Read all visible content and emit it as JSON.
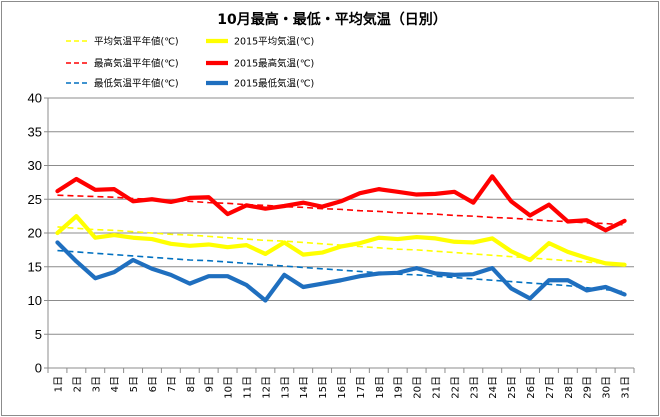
{
  "chart_data": {
    "type": "line",
    "title": "10月最高・最低・平均気温（日別）",
    "ylim": [
      0,
      40
    ],
    "yticks": [
      0,
      5,
      10,
      15,
      20,
      25,
      30,
      35,
      40
    ],
    "grid": true,
    "legend_position": "top-left",
    "categories": [
      "1日",
      "2日",
      "3日",
      "4日",
      "5日",
      "6日",
      "7日",
      "8日",
      "9日",
      "10日",
      "11日",
      "12日",
      "13日",
      "14日",
      "15日",
      "16日",
      "17日",
      "18日",
      "19日",
      "20日",
      "21日",
      "22日",
      "23日",
      "24日",
      "25日",
      "26日",
      "27日",
      "28日",
      "29日",
      "30日",
      "31日"
    ],
    "series": [
      {
        "name": "平均気温平年値(℃)",
        "color": "#ffff00",
        "style": "dashed",
        "values": [
          20.9,
          20.7,
          20.5,
          20.4,
          20.2,
          20.0,
          19.8,
          19.7,
          19.5,
          19.3,
          19.1,
          18.9,
          18.8,
          18.6,
          18.4,
          18.2,
          18.0,
          17.8,
          17.6,
          17.5,
          17.3,
          17.1,
          16.9,
          16.7,
          16.5,
          16.3,
          16.1,
          15.9,
          15.7,
          15.5,
          15.3
        ]
      },
      {
        "name": "2015平均気温(℃)",
        "color": "#ffff00",
        "style": "solid",
        "values": [
          20.0,
          22.5,
          19.3,
          19.7,
          19.3,
          19.1,
          18.4,
          18.1,
          18.3,
          17.9,
          18.2,
          16.9,
          18.6,
          16.8,
          17.1,
          18.0,
          18.5,
          19.3,
          19.1,
          19.4,
          19.2,
          18.7,
          18.6,
          19.2,
          17.3,
          16.0,
          18.5,
          17.2,
          16.3,
          15.5,
          15.3
        ]
      },
      {
        "name": "最高気温平年値(℃)",
        "color": "#ff0000",
        "style": "dashed",
        "values": [
          25.6,
          25.5,
          25.4,
          25.3,
          25.1,
          25.0,
          24.8,
          24.7,
          24.5,
          24.4,
          24.2,
          24.1,
          23.9,
          23.8,
          23.6,
          23.5,
          23.3,
          23.2,
          23.0,
          22.9,
          22.8,
          22.6,
          22.5,
          22.3,
          22.2,
          22.0,
          21.8,
          21.7,
          21.5,
          21.4,
          21.2
        ]
      },
      {
        "name": "2015最高気温(℃)",
        "color": "#ff0000",
        "style": "solid",
        "values": [
          26.2,
          28.0,
          26.4,
          26.5,
          24.7,
          25.0,
          24.6,
          25.2,
          25.3,
          22.8,
          24.1,
          23.6,
          24.0,
          24.5,
          23.9,
          24.7,
          25.9,
          26.5,
          26.1,
          25.7,
          25.8,
          26.1,
          24.5,
          28.4,
          24.7,
          22.6,
          24.2,
          21.7,
          21.9,
          20.4,
          21.8
        ]
      },
      {
        "name": "最低気温平年値(℃)",
        "color": "#0070c0",
        "style": "dashed",
        "values": [
          17.4,
          17.2,
          17.0,
          16.8,
          16.6,
          16.4,
          16.2,
          16.0,
          15.9,
          15.7,
          15.5,
          15.3,
          15.1,
          14.9,
          14.7,
          14.5,
          14.3,
          14.1,
          13.9,
          13.8,
          13.6,
          13.4,
          13.2,
          13.0,
          12.8,
          12.6,
          12.4,
          12.2,
          11.9,
          11.6,
          11.3
        ]
      },
      {
        "name": "2015最低気温(℃)",
        "color": "#1f6fbf",
        "style": "solid",
        "values": [
          18.6,
          15.8,
          13.3,
          14.2,
          16.0,
          14.7,
          13.8,
          12.5,
          13.6,
          13.6,
          12.3,
          10.0,
          13.8,
          12.0,
          12.5,
          13.0,
          13.6,
          14.0,
          14.1,
          14.8,
          14.0,
          13.8,
          13.9,
          14.8,
          11.8,
          10.3,
          13.0,
          13.0,
          11.5,
          12.0,
          10.9
        ]
      }
    ]
  }
}
